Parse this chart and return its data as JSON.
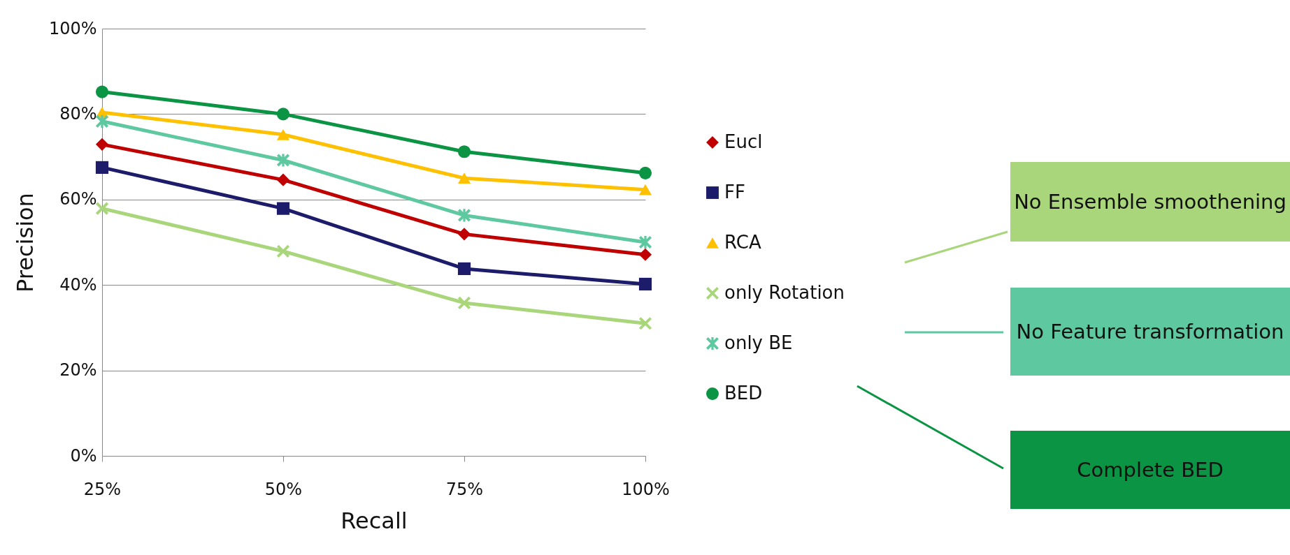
{
  "chart_data": {
    "type": "line",
    "xlabel": "Recall",
    "ylabel": "Precision",
    "categories": [
      "25%",
      "50%",
      "75%",
      "100%"
    ],
    "ylim": [
      0,
      100
    ],
    "yticks": [
      {
        "value": 0,
        "label": "0%"
      },
      {
        "value": 20,
        "label": "20%"
      },
      {
        "value": 40,
        "label": "40%"
      },
      {
        "value": 60,
        "label": "60%"
      },
      {
        "value": 80,
        "label": "80%"
      },
      {
        "value": 100,
        "label": "100%"
      }
    ],
    "grid": "y",
    "legend": "right",
    "line_style": "solid",
    "series": [
      {
        "name": "Eucl",
        "color": "#c00000",
        "marker": "diamond",
        "values": [
          72.9,
          64.6,
          51.9,
          47.1
        ]
      },
      {
        "name": "FF",
        "color": "#1c1c6a",
        "marker": "square",
        "values": [
          67.5,
          57.9,
          43.8,
          40.2
        ]
      },
      {
        "name": "RCA",
        "color": "#ffc000",
        "marker": "triangle",
        "values": [
          80.4,
          75.2,
          65,
          62.3
        ]
      },
      {
        "name": "only Rotation",
        "color": "#a9d67a",
        "marker": "cross",
        "values": [
          57.9,
          47.9,
          35.8,
          31
        ]
      },
      {
        "name": "only BE",
        "color": "#5ec8a0",
        "marker": "star",
        "values": [
          78.3,
          69.2,
          56.3,
          50
        ]
      },
      {
        "name": "BED",
        "color": "#0b9444",
        "marker": "circle",
        "values": [
          85.2,
          80,
          71.2,
          66.2
        ]
      }
    ],
    "annotations": [
      "No Ensemble smoothening",
      "No Feature transformation",
      "Complete BED"
    ]
  }
}
